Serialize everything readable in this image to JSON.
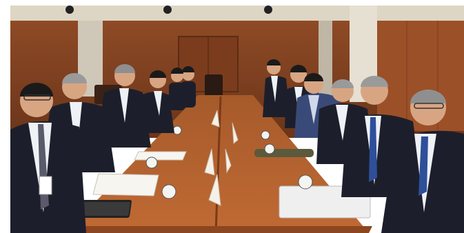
{
  "photo": {
    "subject": "meeting",
    "colors": {
      "wall": "#a0552c",
      "wall_dark": "#7a3d1e",
      "ceiling": "#ddd6c4",
      "table": "#b5642e",
      "table_dark": "#8c4620",
      "suit": "#1c1f2b",
      "shirt": "#eef1f6",
      "skin": "#d8a583",
      "hair": "#1a1a1a",
      "hair_gray": "#9a9a9a"
    }
  }
}
